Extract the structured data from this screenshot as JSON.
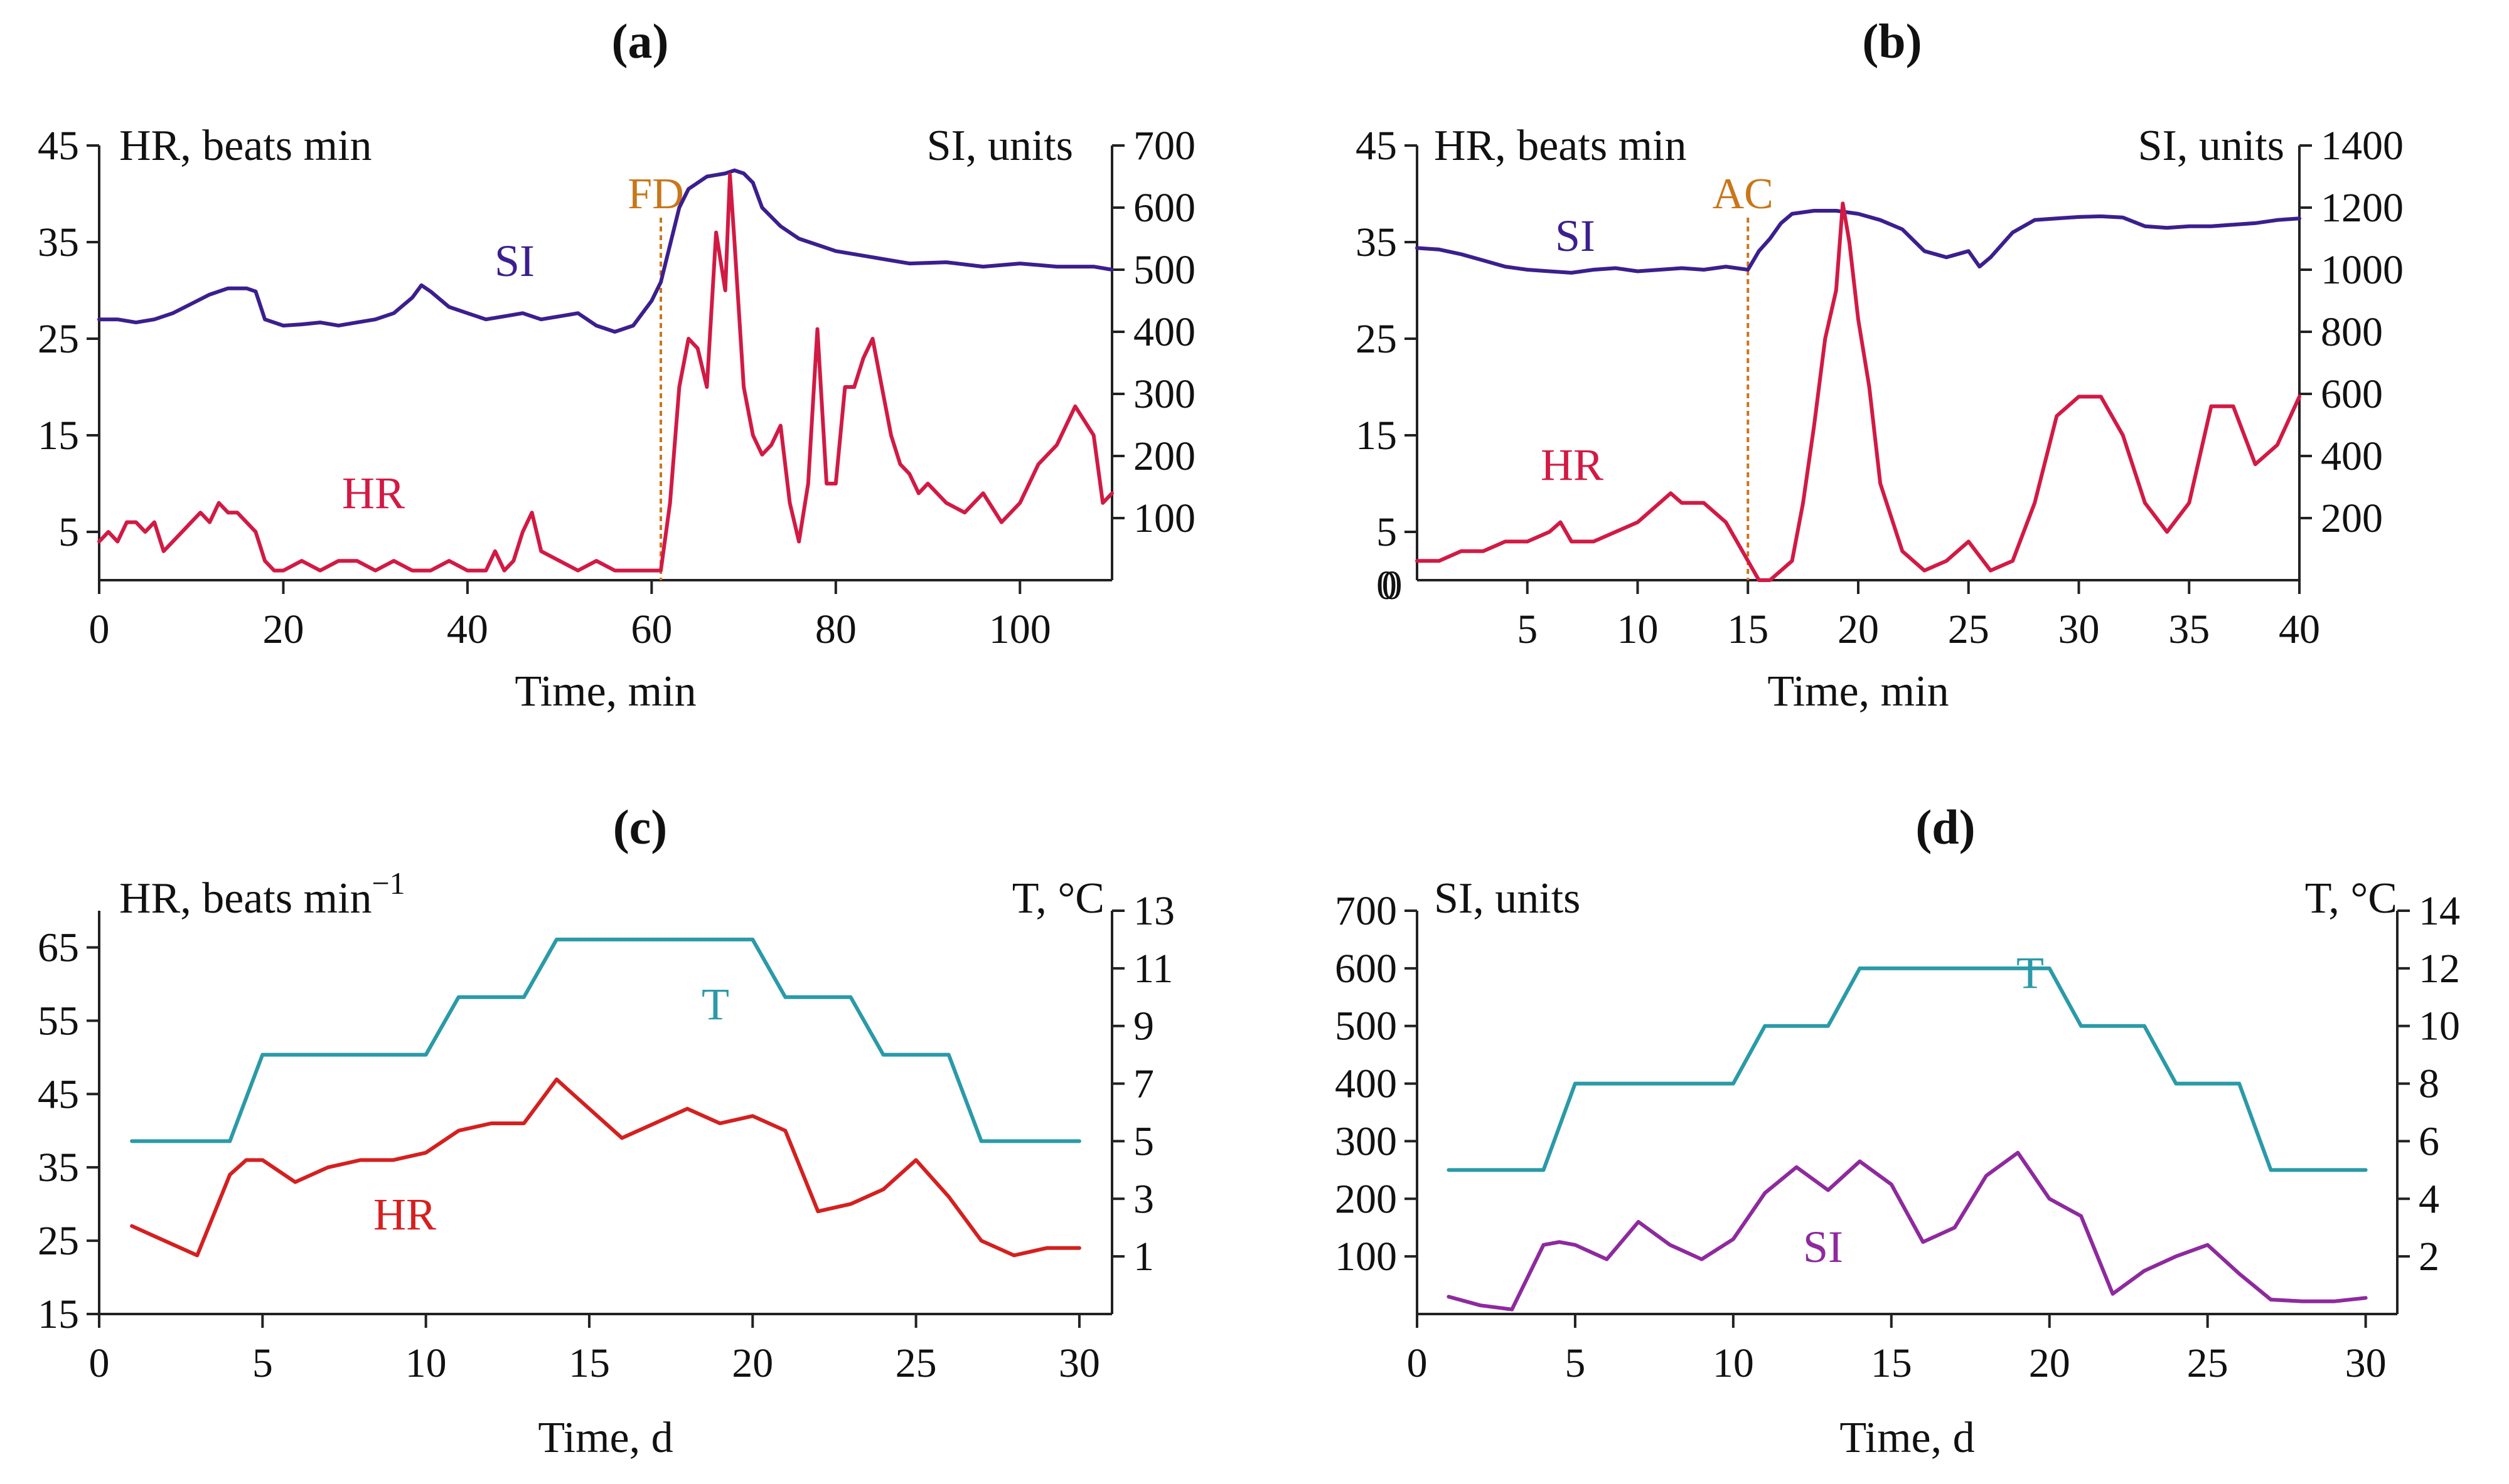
{
  "colors": {
    "hr_a": "#d11a44",
    "si_a": "#3b1f8e",
    "hr_c": "#d42020",
    "t": "#2a9aa8",
    "si_d": "#8e2a9e",
    "annotation": "#c8771a"
  },
  "chart_data": [
    {
      "id": "a",
      "type": "line",
      "title": "(a)",
      "xlabel": "Time, min",
      "ylabel_left": "HR, beats min",
      "ylabel_right": "SI, units",
      "xlim": [
        0,
        110
      ],
      "ylim_left": [
        0,
        45
      ],
      "ylim_right": [
        0,
        700
      ],
      "xticks": [
        0,
        20,
        40,
        60,
        80,
        100
      ],
      "yticks_left": [
        5,
        15,
        25,
        35,
        45
      ],
      "yticks_right": [
        100,
        200,
        300,
        400,
        500,
        600,
        700
      ],
      "annotation": {
        "label": "FD",
        "x": 61
      },
      "series": [
        {
          "name": "SI",
          "axis": "right",
          "color_key": "si_a",
          "x": [
            0,
            2,
            4,
            6,
            8,
            10,
            12,
            14,
            16,
            17,
            18,
            20,
            22,
            24,
            26,
            28,
            30,
            32,
            34,
            35,
            36,
            38,
            40,
            42,
            44,
            46,
            48,
            50,
            52,
            54,
            55,
            56,
            58,
            60,
            61,
            62,
            63,
            64,
            66,
            68,
            69,
            70,
            71,
            72,
            74,
            76,
            78,
            80,
            84,
            88,
            92,
            96,
            100,
            104,
            108,
            110
          ],
          "values": [
            420,
            420,
            415,
            420,
            430,
            445,
            460,
            470,
            470,
            465,
            420,
            410,
            412,
            415,
            410,
            415,
            420,
            430,
            455,
            475,
            465,
            440,
            430,
            420,
            425,
            430,
            420,
            425,
            430,
            410,
            405,
            400,
            410,
            450,
            480,
            540,
            600,
            630,
            650,
            655,
            660,
            655,
            640,
            600,
            570,
            550,
            540,
            530,
            520,
            510,
            512,
            505,
            510,
            505,
            505,
            500
          ]
        },
        {
          "name": "HR",
          "axis": "left",
          "color_key": "hr_a",
          "x": [
            0,
            1,
            2,
            3,
            4,
            5,
            6,
            7,
            8,
            9,
            10,
            11,
            12,
            13,
            14,
            15,
            16,
            17,
            18,
            19,
            20,
            22,
            24,
            26,
            28,
            30,
            32,
            34,
            36,
            38,
            40,
            42,
            43,
            44,
            45,
            46,
            47,
            48,
            50,
            52,
            54,
            56,
            58,
            60,
            61,
            62,
            63,
            64,
            65,
            66,
            67,
            68,
            68.5,
            69,
            70,
            71,
            72,
            73,
            74,
            75,
            76,
            77,
            78,
            79,
            80,
            81,
            82,
            83,
            84,
            85,
            86,
            87,
            88,
            89,
            90,
            92,
            94,
            96,
            98,
            100,
            102,
            104,
            106,
            108,
            109,
            110
          ],
          "values": [
            4,
            5,
            4,
            6,
            6,
            5,
            6,
            3,
            4,
            5,
            6,
            7,
            6,
            8,
            7,
            7,
            6,
            5,
            2,
            1,
            1,
            2,
            1,
            2,
            2,
            1,
            2,
            1,
            1,
            2,
            1,
            1,
            3,
            1,
            2,
            5,
            7,
            3,
            2,
            1,
            2,
            1,
            1,
            1,
            1,
            8,
            20,
            25,
            24,
            20,
            36,
            30,
            42,
            35,
            20,
            15,
            13,
            14,
            16,
            8,
            4,
            10,
            26,
            10,
            10,
            20,
            20,
            23,
            25,
            20,
            15,
            12,
            11,
            9,
            10,
            8,
            7,
            9,
            6,
            8,
            12,
            14,
            18,
            15,
            8,
            9
          ]
        }
      ]
    },
    {
      "id": "b",
      "type": "line",
      "title": "(b)",
      "xlabel": "Time, min",
      "ylabel_left": "HR, beats min",
      "ylabel_right": "SI, units",
      "xlim": [
        0,
        40
      ],
      "ylim_left": [
        0,
        45
      ],
      "ylim_right": [
        0,
        1400
      ],
      "xticks": [
        5,
        10,
        15,
        20,
        25,
        30,
        35,
        40
      ],
      "xtick_zero_label": "0",
      "yticks_left": [
        5,
        15,
        25,
        35,
        45
      ],
      "yticks_right": [
        200,
        400,
        600,
        800,
        1000,
        1200,
        1400
      ],
      "annotation": {
        "label": "AC",
        "x": 15
      },
      "series": [
        {
          "name": "SI",
          "axis": "right",
          "color_key": "si_a",
          "x": [
            0,
            1,
            2,
            3,
            4,
            5,
            6,
            7,
            8,
            9,
            10,
            11,
            12,
            13,
            14,
            15,
            15.5,
            16,
            16.5,
            17,
            18,
            19,
            20,
            21,
            22,
            23,
            24,
            25,
            25.5,
            26,
            27,
            28,
            29,
            30,
            31,
            32,
            33,
            34,
            35,
            36,
            37,
            38,
            39,
            40
          ],
          "values": [
            1070,
            1065,
            1050,
            1030,
            1010,
            1000,
            995,
            990,
            1000,
            1005,
            995,
            1000,
            1005,
            1000,
            1010,
            1000,
            1060,
            1100,
            1150,
            1180,
            1190,
            1190,
            1180,
            1160,
            1130,
            1060,
            1040,
            1060,
            1010,
            1040,
            1120,
            1160,
            1165,
            1170,
            1172,
            1168,
            1140,
            1135,
            1140,
            1140,
            1145,
            1150,
            1160,
            1165
          ]
        },
        {
          "name": "HR",
          "axis": "left",
          "color_key": "hr_a",
          "x": [
            0,
            1,
            2,
            3,
            4,
            5,
            6,
            6.5,
            7,
            8,
            9,
            10,
            11,
            11.5,
            12,
            13,
            14,
            14.5,
            15,
            15.5,
            16,
            17,
            17.5,
            18,
            18.5,
            19,
            19.3,
            19.6,
            20,
            20.5,
            21,
            22,
            23,
            24,
            25,
            26,
            27,
            28,
            29,
            30,
            31,
            32,
            33,
            34,
            35,
            36,
            37,
            38,
            39,
            40
          ],
          "values": [
            2,
            2,
            3,
            3,
            4,
            4,
            5,
            6,
            4,
            4,
            5,
            6,
            8,
            9,
            8,
            8,
            6,
            4,
            2,
            0,
            0,
            2,
            8,
            16,
            25,
            30,
            39,
            35,
            27,
            20,
            10,
            3,
            1,
            2,
            4,
            1,
            2,
            8,
            17,
            19,
            19,
            15,
            8,
            5,
            8,
            18,
            18,
            12,
            14,
            19
          ]
        }
      ]
    },
    {
      "id": "c",
      "type": "line",
      "title": "(c)",
      "xlabel": "Time, d",
      "ylabel_left": "HR, beats min",
      "ylabel_left_sup": "−1",
      "ylabel_right": "T, °C",
      "xlim": [
        0,
        31
      ],
      "ylim_left": [
        15,
        70
      ],
      "ylim_right": [
        -1,
        13
      ],
      "xticks": [
        0,
        5,
        10,
        15,
        20,
        25,
        30
      ],
      "yticks_left": [
        15,
        25,
        35,
        45,
        55,
        65
      ],
      "yticks_right": [
        1,
        3,
        5,
        7,
        9,
        11,
        13
      ],
      "series": [
        {
          "name": "T",
          "axis": "right",
          "color_key": "t",
          "x": [
            1,
            4,
            5,
            10,
            11,
            13,
            14,
            20,
            21,
            23,
            24,
            26,
            27,
            30
          ],
          "values": [
            5,
            5,
            8,
            8,
            10,
            10,
            12,
            12,
            10,
            10,
            8,
            8,
            5,
            5
          ]
        },
        {
          "name": "HR",
          "axis": "left",
          "color_key": "hr_c",
          "x": [
            1,
            2,
            3,
            4,
            4.5,
            5,
            6,
            7,
            8,
            9,
            10,
            11,
            12,
            13,
            13.5,
            14,
            14.5,
            15,
            16,
            17,
            18,
            19,
            20,
            21,
            22,
            23,
            24,
            25,
            26,
            27,
            27.5,
            28,
            29,
            30
          ],
          "values": [
            27,
            25,
            23,
            34,
            36,
            36,
            33,
            35,
            36,
            36,
            37,
            40,
            41,
            41,
            44,
            47,
            45,
            43,
            39,
            41,
            43,
            41,
            42,
            40,
            29,
            30,
            32,
            36,
            31,
            25,
            24,
            23,
            24,
            24
          ]
        }
      ]
    },
    {
      "id": "d",
      "type": "line",
      "title": "(d)",
      "xlabel": "Time, d",
      "ylabel_left": "SI, units",
      "ylabel_right": "T, °C",
      "xlim": [
        0,
        31
      ],
      "ylim_left": [
        0,
        700
      ],
      "ylim_right": [
        0,
        14
      ],
      "xticks": [
        0,
        5,
        10,
        15,
        20,
        25,
        30
      ],
      "yticks_left": [
        100,
        200,
        300,
        400,
        500,
        600,
        700
      ],
      "yticks_right": [
        2,
        4,
        6,
        8,
        10,
        12,
        14
      ],
      "series": [
        {
          "name": "T",
          "axis": "right",
          "color_key": "t",
          "x": [
            1,
            4,
            5,
            10,
            11,
            13,
            14,
            20,
            21,
            23,
            24,
            26,
            27,
            30
          ],
          "values": [
            5,
            5,
            8,
            8,
            10,
            10,
            12,
            12,
            10,
            10,
            8,
            8,
            5,
            5
          ]
        },
        {
          "name": "SI",
          "axis": "left",
          "color_key": "si_d",
          "x": [
            1,
            2,
            3,
            4,
            4.5,
            5,
            6,
            7,
            8,
            9,
            10,
            11,
            12,
            13,
            14,
            15,
            16,
            17,
            18,
            19,
            20,
            21,
            22,
            23,
            24,
            25,
            26,
            27,
            28,
            29,
            30
          ],
          "values": [
            30,
            15,
            8,
            120,
            125,
            120,
            95,
            160,
            120,
            95,
            130,
            210,
            255,
            215,
            265,
            225,
            125,
            150,
            240,
            280,
            200,
            170,
            35,
            75,
            100,
            120,
            70,
            25,
            22,
            22,
            28
          ]
        }
      ]
    }
  ]
}
